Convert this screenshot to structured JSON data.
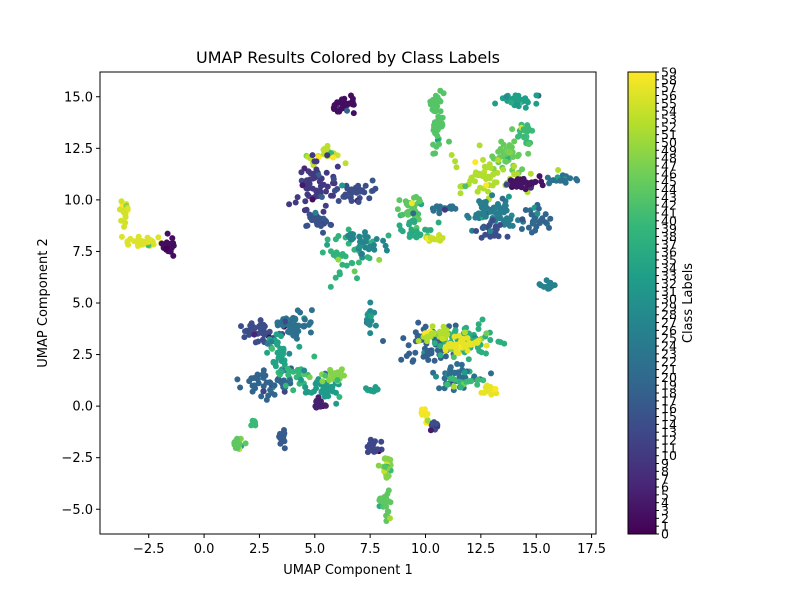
{
  "chart_data": {
    "type": "scatter",
    "title": "UMAP Results Colored by Class Labels",
    "xlabel": "UMAP Component 1",
    "ylabel": "UMAP Component 2",
    "xlim": [
      -4.7,
      17.7
    ],
    "ylim": [
      -6.2,
      16.2
    ],
    "xticks": [
      -2.5,
      0.0,
      2.5,
      5.0,
      7.5,
      10.0,
      12.5,
      15.0,
      17.5
    ],
    "xtick_labels": [
      "−2.5",
      "0.0",
      "2.5",
      "5.0",
      "7.5",
      "10.0",
      "12.5",
      "15.0",
      "17.5"
    ],
    "yticks": [
      -5.0,
      -2.5,
      0.0,
      2.5,
      5.0,
      7.5,
      10.0,
      12.5,
      15.0
    ],
    "ytick_labels": [
      "−5.0",
      "−2.5",
      "0.0",
      "2.5",
      "5.0",
      "7.5",
      "10.0",
      "12.5",
      "15.0"
    ],
    "grid": false,
    "colormap": "viridis",
    "colorbar": {
      "label": "Class Labels",
      "min": 0,
      "max": 59,
      "ticks": [
        0,
        1,
        2,
        3,
        4,
        5,
        6,
        7,
        8,
        9,
        10,
        11,
        12,
        13,
        14,
        15,
        16,
        17,
        18,
        19,
        20,
        21,
        22,
        23,
        24,
        25,
        26,
        27,
        28,
        29,
        30,
        31,
        32,
        33,
        34,
        35,
        36,
        37,
        38,
        39,
        40,
        41,
        42,
        43,
        44,
        45,
        46,
        47,
        48,
        49,
        50,
        51,
        52,
        53,
        54,
        55,
        56,
        57,
        58,
        59
      ]
    },
    "clusters": [
      {
        "x": 6.3,
        "y": 14.6,
        "sx": 0.25,
        "sy": 0.2,
        "n": 30,
        "label": 2
      },
      {
        "x": 10.5,
        "y": 14.0,
        "sx": 0.15,
        "sy": 0.7,
        "n": 45,
        "label": 43
      },
      {
        "x": 14.2,
        "y": 14.8,
        "sx": 0.4,
        "sy": 0.15,
        "n": 35,
        "label": 33
      },
      {
        "x": 14.5,
        "y": 13.2,
        "sx": 0.2,
        "sy": 0.3,
        "n": 20,
        "label": 40
      },
      {
        "x": 13.7,
        "y": 12.2,
        "sx": 0.35,
        "sy": 0.4,
        "n": 40,
        "label": 45
      },
      {
        "x": 12.8,
        "y": 11.2,
        "sx": 0.8,
        "sy": 0.5,
        "n": 60,
        "label": 52
      },
      {
        "x": 14.4,
        "y": 10.8,
        "sx": 0.4,
        "sy": 0.15,
        "n": 30,
        "label": 3
      },
      {
        "x": 16.2,
        "y": 11.0,
        "sx": 0.3,
        "sy": 0.1,
        "n": 20,
        "label": 22
      },
      {
        "x": 13.3,
        "y": 9.3,
        "sx": 0.6,
        "sy": 0.4,
        "n": 70,
        "label": 25
      },
      {
        "x": 15.0,
        "y": 9.0,
        "sx": 0.3,
        "sy": 0.3,
        "n": 30,
        "label": 19
      },
      {
        "x": 13.0,
        "y": 8.5,
        "sx": 0.3,
        "sy": 0.2,
        "n": 20,
        "label": 14
      },
      {
        "x": 15.5,
        "y": 5.8,
        "sx": 0.12,
        "sy": 0.15,
        "n": 15,
        "label": 26
      },
      {
        "x": 5.3,
        "y": 12.2,
        "sx": 0.4,
        "sy": 0.2,
        "n": 25,
        "label": 53
      },
      {
        "x": 5.0,
        "y": 10.8,
        "sx": 0.4,
        "sy": 0.6,
        "n": 60,
        "label": 10
      },
      {
        "x": 6.8,
        "y": 10.5,
        "sx": 0.5,
        "sy": 0.3,
        "n": 35,
        "label": 14
      },
      {
        "x": 5.2,
        "y": 9.0,
        "sx": 0.3,
        "sy": 0.3,
        "n": 30,
        "label": 15
      },
      {
        "x": 6.5,
        "y": 7.5,
        "sx": 0.6,
        "sy": 0.6,
        "n": 40,
        "label": 38
      },
      {
        "x": 7.3,
        "y": 8.0,
        "sx": 0.4,
        "sy": 0.3,
        "n": 30,
        "label": 27
      },
      {
        "x": 9.3,
        "y": 9.6,
        "sx": 0.3,
        "sy": 0.3,
        "n": 35,
        "label": 44
      },
      {
        "x": 9.5,
        "y": 8.5,
        "sx": 0.4,
        "sy": 0.3,
        "n": 25,
        "label": 36
      },
      {
        "x": 10.3,
        "y": 8.2,
        "sx": 0.2,
        "sy": 0.1,
        "n": 15,
        "label": 54
      },
      {
        "x": 10.8,
        "y": 9.6,
        "sx": 0.3,
        "sy": 0.1,
        "n": 15,
        "label": 22
      },
      {
        "x": -3.6,
        "y": 9.5,
        "sx": 0.12,
        "sy": 0.25,
        "n": 20,
        "label": 55
      },
      {
        "x": -2.8,
        "y": 8.0,
        "sx": 0.4,
        "sy": 0.12,
        "n": 35,
        "label": 56
      },
      {
        "x": -1.6,
        "y": 7.8,
        "sx": 0.15,
        "sy": 0.25,
        "n": 25,
        "label": 2
      },
      {
        "x": 2.5,
        "y": 3.6,
        "sx": 0.4,
        "sy": 0.3,
        "n": 40,
        "label": 14
      },
      {
        "x": 4.0,
        "y": 4.0,
        "sx": 0.4,
        "sy": 0.4,
        "n": 50,
        "label": 22
      },
      {
        "x": 3.3,
        "y": 2.6,
        "sx": 0.3,
        "sy": 0.6,
        "n": 35,
        "label": 34
      },
      {
        "x": 2.7,
        "y": 1.1,
        "sx": 0.6,
        "sy": 0.3,
        "n": 50,
        "label": 19
      },
      {
        "x": 4.1,
        "y": 1.6,
        "sx": 0.4,
        "sy": 0.3,
        "n": 25,
        "label": 39
      },
      {
        "x": 1.5,
        "y": -1.9,
        "sx": 0.15,
        "sy": 0.2,
        "n": 20,
        "label": 44
      },
      {
        "x": 2.2,
        "y": -0.8,
        "sx": 0.1,
        "sy": 0.1,
        "n": 8,
        "label": 40
      },
      {
        "x": 3.5,
        "y": -1.5,
        "sx": 0.1,
        "sy": 0.2,
        "n": 15,
        "label": 17
      },
      {
        "x": 5.5,
        "y": 0.9,
        "sx": 0.4,
        "sy": 0.3,
        "n": 40,
        "label": 32
      },
      {
        "x": 5.2,
        "y": 0.1,
        "sx": 0.15,
        "sy": 0.15,
        "n": 15,
        "label": 5
      },
      {
        "x": 5.8,
        "y": 1.5,
        "sx": 0.3,
        "sy": 0.2,
        "n": 20,
        "label": 48
      },
      {
        "x": 7.5,
        "y": 4.3,
        "sx": 0.1,
        "sy": 0.3,
        "n": 20,
        "label": 28
      },
      {
        "x": 7.6,
        "y": 0.8,
        "sx": 0.2,
        "sy": 0.05,
        "n": 10,
        "label": 33
      },
      {
        "x": 7.6,
        "y": -1.9,
        "sx": 0.2,
        "sy": 0.2,
        "n": 20,
        "label": 13
      },
      {
        "x": 8.2,
        "y": -2.9,
        "sx": 0.1,
        "sy": 0.3,
        "n": 20,
        "label": 48
      },
      {
        "x": 8.2,
        "y": -4.7,
        "sx": 0.15,
        "sy": 0.35,
        "n": 25,
        "label": 44
      },
      {
        "x": 10.2,
        "y": 3.0,
        "sx": 0.6,
        "sy": 0.5,
        "n": 70,
        "label": 18
      },
      {
        "x": 12.0,
        "y": 3.2,
        "sx": 0.6,
        "sy": 0.4,
        "n": 60,
        "label": 37
      },
      {
        "x": 11.6,
        "y": 2.9,
        "sx": 0.4,
        "sy": 0.2,
        "n": 40,
        "label": 57
      },
      {
        "x": 10.5,
        "y": 3.5,
        "sx": 0.4,
        "sy": 0.15,
        "n": 30,
        "label": 52
      },
      {
        "x": 11.3,
        "y": 1.4,
        "sx": 0.6,
        "sy": 0.3,
        "n": 40,
        "label": 21
      },
      {
        "x": 11.8,
        "y": 1.2,
        "sx": 0.4,
        "sy": 0.1,
        "n": 20,
        "label": 40
      },
      {
        "x": 12.9,
        "y": 0.8,
        "sx": 0.2,
        "sy": 0.15,
        "n": 15,
        "label": 57
      },
      {
        "x": 10.0,
        "y": -0.4,
        "sx": 0.12,
        "sy": 0.15,
        "n": 15,
        "label": 58
      },
      {
        "x": 10.4,
        "y": -1.0,
        "sx": 0.1,
        "sy": 0.15,
        "n": 15,
        "label": 14
      }
    ]
  }
}
